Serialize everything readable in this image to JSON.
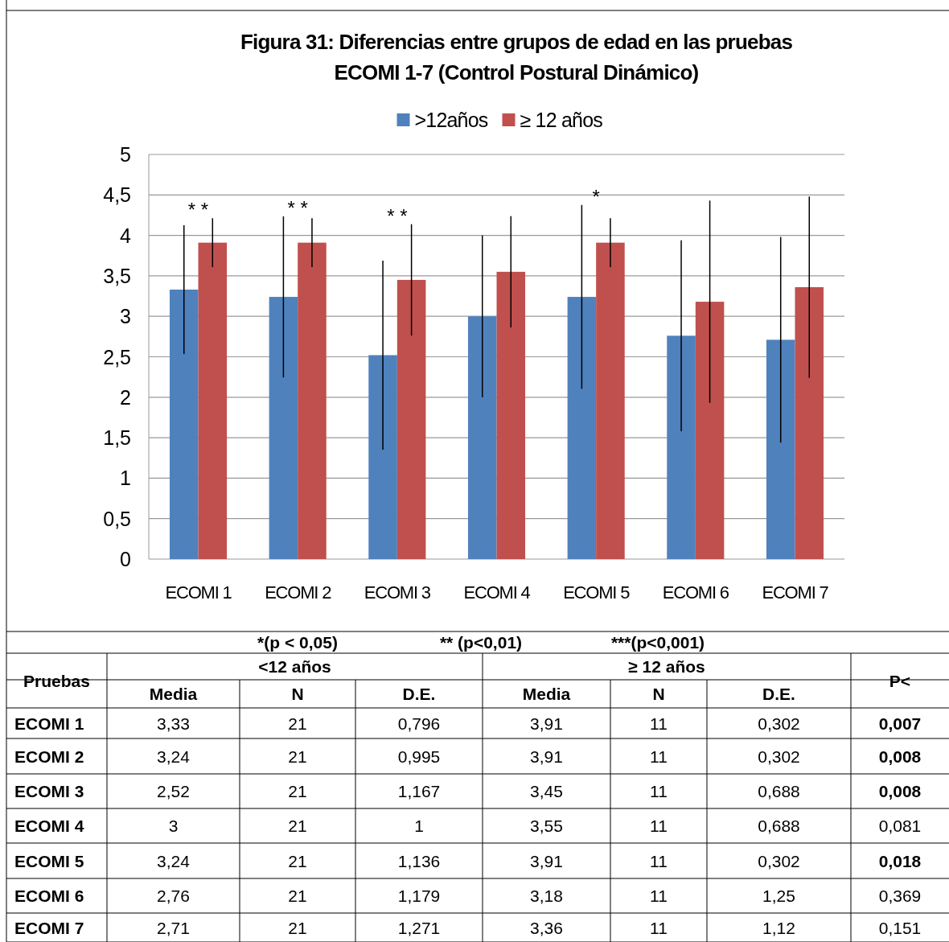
{
  "chart_data": {
    "type": "bar",
    "title": "Figura 31: Diferencias entre grupos de edad en las pruebas\nECOMI 1-7 (Control Postural Dinámico)",
    "categories": [
      "ECOMI 1",
      "ECOMI 2",
      "ECOMI 3",
      "ECOMI 4",
      "ECOMI 5",
      "ECOMI 6",
      "ECOMI 7"
    ],
    "series": [
      {
        "name": ">12años",
        "color": "#4f81bd",
        "values": [
          3.33,
          3.24,
          2.52,
          3,
          3.24,
          2.76,
          2.71
        ],
        "errors": [
          0.796,
          0.995,
          1.167,
          1,
          1.136,
          1.179,
          1.271
        ]
      },
      {
        "name": "≥ 12 años",
        "color": "#c0504d",
        "values": [
          3.91,
          3.91,
          3.45,
          3.55,
          3.91,
          3.18,
          3.36
        ],
        "errors": [
          0.302,
          0.302,
          0.688,
          0.688,
          0.302,
          1.25,
          1.12
        ]
      }
    ],
    "ylim": [
      0,
      5
    ],
    "yticks": [
      0,
      {
        "value": 0.5,
        "label": "0,5"
      },
      1,
      {
        "value": 1.5,
        "label": "1,5"
      },
      2,
      {
        "value": 2.5,
        "label": "2,5"
      },
      3,
      {
        "value": 3.5,
        "label": "3,5"
      },
      4,
      {
        "value": 4.5,
        "label": "4,5"
      },
      5
    ],
    "grid": "y",
    "legend": "top",
    "annotations": [
      "* *",
      "* *",
      "* *",
      "*",
      "*(p < 0,05)",
      "** (p<0,01)",
      "***(p<0,001)",
      "Pruebas",
      "<12 años",
      "≥ 12 años",
      "P<",
      "Media",
      "N",
      "D.E.",
      "Media",
      "N",
      "D.E.",
      "3,33",
      "21",
      "0,796",
      "3,91",
      "11",
      "0,302",
      "0,007",
      "3,24",
      "21",
      "0,995",
      "3,91",
      "11",
      "0,302",
      "0,008",
      "2,52",
      "21",
      "1,167",
      "3,45",
      "11",
      "0,688",
      "0,008",
      "3",
      "21",
      "1",
      "3,55",
      "11",
      "0,688",
      "0,081",
      "3,24",
      "21",
      "1,136",
      "3,91",
      "11",
      "0,302",
      "0,018",
      "2,76",
      "21",
      "1,179",
      "3,18",
      "11",
      "1,25",
      "0,369",
      "2,71",
      "21",
      "1,271",
      "3,36",
      "11",
      "1,12",
      "0,151"
    ]
  }
}
